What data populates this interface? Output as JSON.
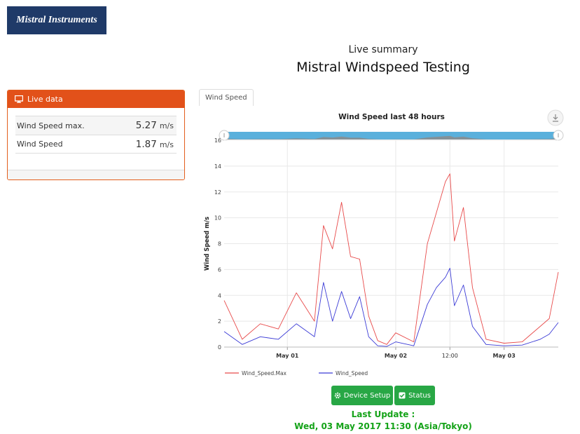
{
  "brand": {
    "logo_text": "Mistral Instruments",
    "color": "#1f3a68"
  },
  "header": {
    "subtitle": "Live summary",
    "title": "Mistral Windspeed Testing"
  },
  "live_panel": {
    "title": "Live data",
    "icon": "monitor-icon",
    "accent": "#e2511a",
    "rows": [
      {
        "label": "Wind Speed max.",
        "value": "5.27",
        "unit": "m/s"
      },
      {
        "label": "Wind Speed",
        "value": "1.87",
        "unit": "m/s"
      }
    ]
  },
  "tabs": [
    {
      "label": "Wind Speed",
      "active": true
    }
  ],
  "chart_data": {
    "type": "line",
    "title": "Wind Speed last 48 hours",
    "ylabel": "Wind Speed m/s",
    "xlabel": "",
    "ylim": [
      0,
      16
    ],
    "yticks": [
      0,
      2,
      4,
      6,
      8,
      10,
      12,
      14,
      16
    ],
    "xlim": [
      "2017-04-30 10:00",
      "2017-05-03 12:00"
    ],
    "xticks": [
      "May 01",
      "May 02",
      "12:00",
      "May 03"
    ],
    "grid": true,
    "legend": "bottom-left",
    "navigator": true,
    "x": [
      "2017-04-30 10:00",
      "2017-04-30 14:00",
      "2017-04-30 18:00",
      "2017-04-30 22:00",
      "2017-05-01 02:00",
      "2017-05-01 06:00",
      "2017-05-01 08:00",
      "2017-05-01 10:00",
      "2017-05-01 12:00",
      "2017-05-01 14:00",
      "2017-05-01 16:00",
      "2017-05-01 18:00",
      "2017-05-01 20:00",
      "2017-05-01 22:00",
      "2017-05-02 00:00",
      "2017-05-02 04:00",
      "2017-05-02 07:00",
      "2017-05-02 09:00",
      "2017-05-02 11:00",
      "2017-05-02 12:00",
      "2017-05-02 13:00",
      "2017-05-02 15:00",
      "2017-05-02 17:00",
      "2017-05-02 20:00",
      "2017-05-03 00:00",
      "2017-05-03 04:00",
      "2017-05-03 08:00",
      "2017-05-03 10:00",
      "2017-05-03 12:00"
    ],
    "series": [
      {
        "name": "Wind_Speed.Max",
        "color": "#e84a4a",
        "values": [
          3.6,
          0.6,
          1.8,
          1.4,
          4.2,
          2.0,
          9.4,
          7.6,
          11.2,
          7.0,
          6.8,
          2.4,
          0.5,
          0.2,
          1.1,
          0.4,
          8.0,
          10.4,
          12.8,
          13.4,
          8.2,
          10.8,
          4.6,
          0.6,
          0.3,
          0.4,
          1.6,
          2.2,
          5.8
        ]
      },
      {
        "name": "Wind_Speed",
        "color": "#3b3bd6",
        "values": [
          1.2,
          0.2,
          0.8,
          0.6,
          1.8,
          0.8,
          5.0,
          2.0,
          4.3,
          2.2,
          3.9,
          0.8,
          0.1,
          0.05,
          0.4,
          0.1,
          3.3,
          4.6,
          5.4,
          6.1,
          3.2,
          4.8,
          1.6,
          0.2,
          0.1,
          0.15,
          0.6,
          1.0,
          1.9
        ]
      }
    ],
    "colors": {
      "navigator_fill": "#5ab0dc",
      "navigator_series": "#8c8c8c",
      "grid": "#e8e8e8"
    }
  },
  "buttons": {
    "device_setup": "Device Setup",
    "status": "Status",
    "color": "#28a745"
  },
  "last_update": {
    "label": "Last Update :",
    "value": "Wed, 03 May 2017 11:30 (Asia/Tokyo)",
    "color": "#15a319"
  }
}
